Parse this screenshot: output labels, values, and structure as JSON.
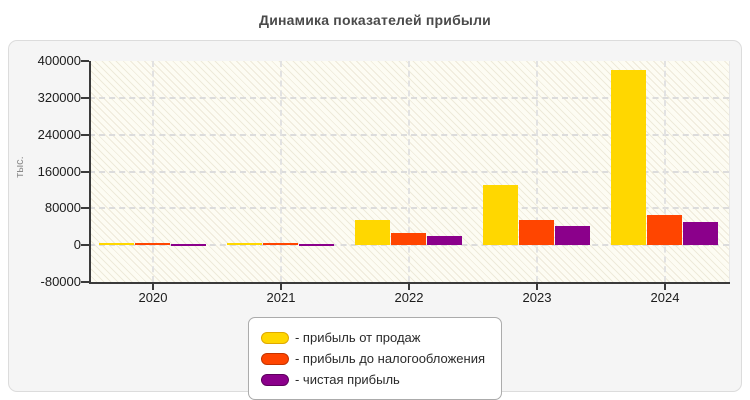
{
  "title": "Динамика показателей прибыли",
  "y_axis_title": "тыс.",
  "chart_data": {
    "type": "bar",
    "title": "Динамика показателей прибыли",
    "categories": [
      "2020",
      "2021",
      "2022",
      "2023",
      "2024"
    ],
    "series": [
      {
        "name": "прибыль от продаж",
        "color": "#FFD700",
        "border": "#dfa900",
        "values": [
          4000,
          4000,
          55000,
          130000,
          380000
        ]
      },
      {
        "name": "прибыль до налогообложения",
        "color": "#FF4500",
        "border": "#c53500",
        "values": [
          4000,
          4000,
          26000,
          55000,
          65000
        ]
      },
      {
        "name": "чистая прибыль",
        "color": "#8B008B",
        "border": "#5e005e",
        "values": [
          3500,
          3500,
          20000,
          42000,
          50000
        ]
      }
    ],
    "xlabel": "",
    "ylabel": "тыс.",
    "ylim": [
      -80000,
      400000
    ],
    "ytick_step": 80000,
    "yticks": [
      "400000",
      "320000",
      "240000",
      "160000",
      "80000",
      "0",
      "-80000"
    ],
    "grid": true,
    "legend_position": "bottom-center"
  },
  "legend": {
    "items": [
      {
        "label": "- прибыль от продаж",
        "color": "#FFD700",
        "border": "#dfa900"
      },
      {
        "label": "- прибыль до налогообложения",
        "color": "#FF4500",
        "border": "#c53500"
      },
      {
        "label": "- чистая прибыль",
        "color": "#8B008B",
        "border": "#5e005e"
      }
    ]
  }
}
